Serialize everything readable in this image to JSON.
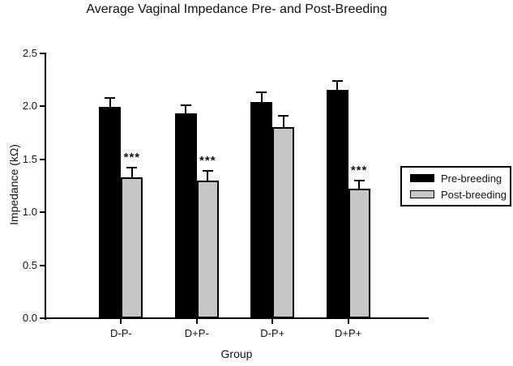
{
  "chart_data": {
    "type": "bar",
    "title": "Average Vaginal Impedance Pre- and Post-Breeding",
    "xlabel": "Group",
    "ylabel": "Impedance (kΩ)",
    "ylim": [
      0,
      2.5
    ],
    "ytick_labels": [
      "0.0",
      "0.5",
      "1.0",
      "1.5",
      "2.0",
      "2.5"
    ],
    "categories": [
      "D-P-",
      "D+P-",
      "D-P+",
      "D+P+"
    ],
    "series": [
      {
        "name": "Pre-breeding",
        "color": "#000000",
        "values": [
          1.99,
          1.93,
          2.04,
          2.15
        ],
        "errors": [
          0.09,
          0.08,
          0.09,
          0.09
        ],
        "significance": [
          "",
          "",
          "",
          ""
        ]
      },
      {
        "name": "Post-breeding",
        "color": "#c6c6c6",
        "values": [
          1.33,
          1.3,
          1.8,
          1.22
        ],
        "errors": [
          0.09,
          0.09,
          0.11,
          0.08
        ],
        "significance": [
          "***",
          "***",
          "",
          "***"
        ]
      }
    ],
    "legend_position": "right",
    "grid": "off",
    "axis_color": "#000000",
    "background_color": "#ffffff",
    "error_bars": "upper only"
  }
}
